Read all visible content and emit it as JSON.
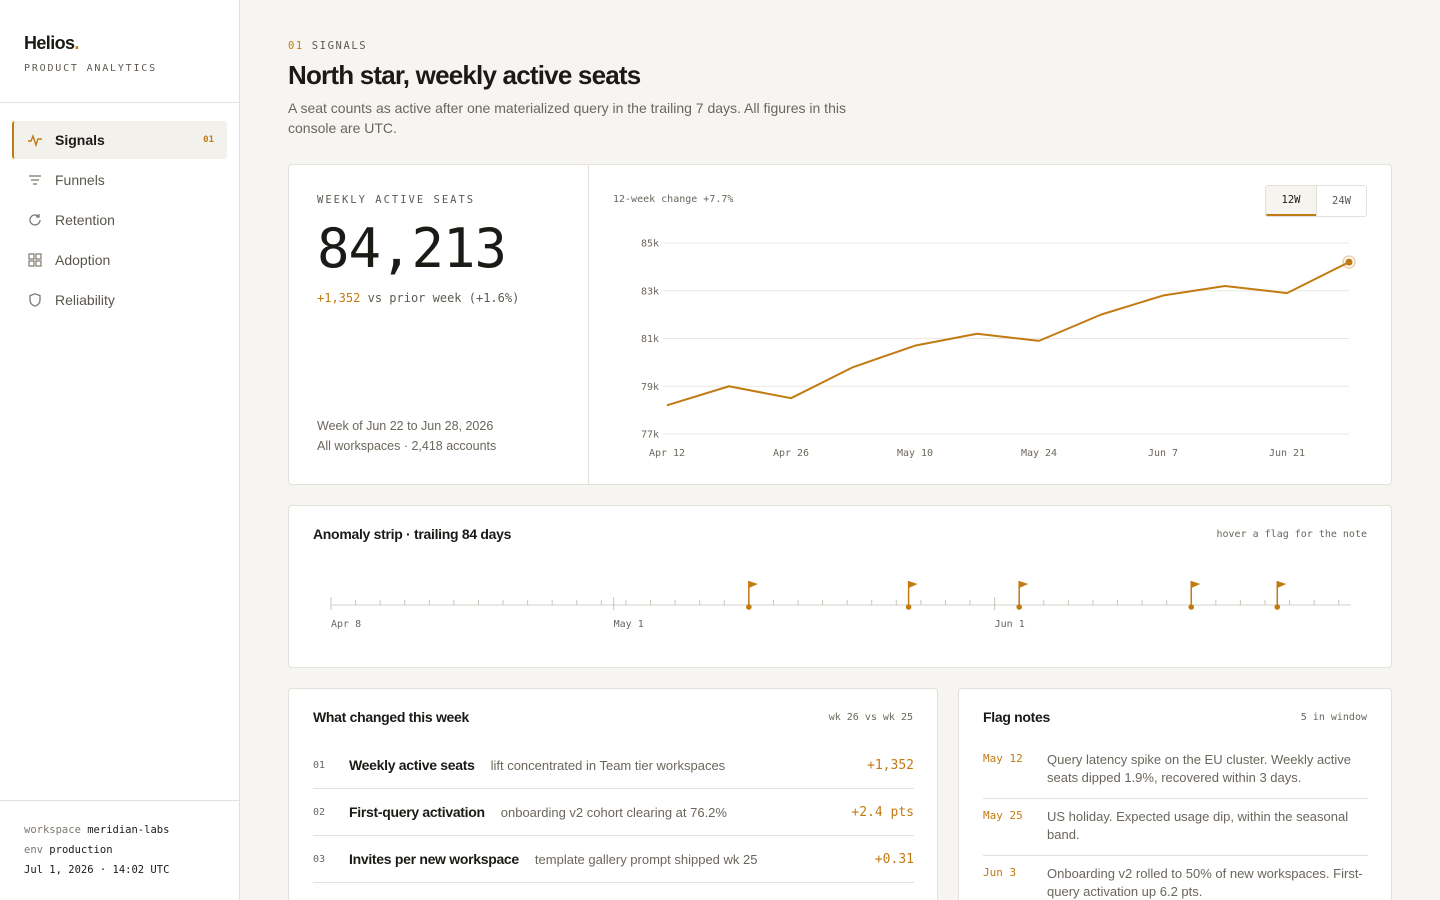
{
  "brand": {
    "name": "Helios",
    "dot": ".",
    "tagline": "PRODUCT ANALYTICS"
  },
  "nav": [
    {
      "label": "Signals",
      "icon": "pulse-icon",
      "count": "01",
      "active": true
    },
    {
      "label": "Funnels",
      "icon": "funnel-icon"
    },
    {
      "label": "Retention",
      "icon": "refresh-icon"
    },
    {
      "label": "Adoption",
      "icon": "grid-icon"
    },
    {
      "label": "Reliability",
      "icon": "shield-icon"
    }
  ],
  "env": {
    "workspace_label": "workspace",
    "workspace": "meridian-labs",
    "env_label": "env",
    "env": "production",
    "timestamp": "Jul 1, 2026 · 14:02 UTC"
  },
  "page": {
    "eyebrow_num": "01",
    "eyebrow": "SIGNALS",
    "title": "North star, weekly active seats",
    "subtitle": "A seat counts as active after one materialized query in the trailing 7 days. All figures in this console are UTC."
  },
  "stat": {
    "label": "WEEKLY ACTIVE SEATS",
    "value": "84,213",
    "delta": "+1,352",
    "delta_rest": "vs prior week (+1.6%)",
    "week": "Week of Jun 22 to Jun 28, 2026",
    "scope": "All workspaces · 2,418 accounts"
  },
  "chart_meta": {
    "change": "12-week change +7.7%",
    "range_options": [
      "12W",
      "24W"
    ],
    "range_selected": "12W",
    "accent": "#c27a12"
  },
  "chart_data": {
    "type": "line",
    "x": [
      "Apr 12",
      "Apr 19",
      "Apr 26",
      "May 3",
      "May 10",
      "May 17",
      "May 24",
      "May 31",
      "Jun 7",
      "Jun 14",
      "Jun 21",
      "Jun 28"
    ],
    "values": [
      78.2,
      79.0,
      78.5,
      79.8,
      80.7,
      81.2,
      80.9,
      82.0,
      82.8,
      83.2,
      82.9,
      84.2
    ],
    "x_tick_labels": [
      "Apr 12",
      "Apr 26",
      "May 10",
      "May 24",
      "Jun 7",
      "Jun 21"
    ],
    "y_tick_labels": [
      "85k",
      "83k",
      "81k",
      "79k",
      "77k"
    ],
    "y_ticks": [
      85,
      83,
      81,
      79,
      77
    ],
    "ylim": [
      77,
      85
    ],
    "grid": true,
    "highlight_last": true
  },
  "strip": {
    "title": "Anomaly strip · trailing 84 days",
    "hint": "hover a flag for the note",
    "day_count": 84,
    "axis_labels": [
      {
        "label": "Apr 8",
        "day": 0
      },
      {
        "label": "May 1",
        "day": 23
      },
      {
        "label": "Jun 1",
        "day": 54
      }
    ],
    "flag_days": [
      34,
      47,
      56,
      70,
      77
    ]
  },
  "changes": {
    "title": "What changed this week",
    "meta": "wk 26 vs wk 25",
    "rows": [
      {
        "idx": "01",
        "name": "Weekly active seats",
        "desc": "lift concentrated in Team tier workspaces",
        "value": "+1,352"
      },
      {
        "idx": "02",
        "name": "First-query activation",
        "desc": "onboarding v2 cohort clearing at 76.2%",
        "value": "+2.4 pts"
      },
      {
        "idx": "03",
        "name": "Invites per new workspace",
        "desc": "template gallery prompt shipped wk 25",
        "value": "+0.31"
      }
    ]
  },
  "notes": {
    "title": "Flag notes",
    "meta": "5 in window",
    "rows": [
      {
        "date": "May 12",
        "text": "Query latency spike on the EU cluster. Weekly active seats dipped 1.9%, recovered within 3 days."
      },
      {
        "date": "May 25",
        "text": "US holiday. Expected usage dip, within the seasonal band."
      },
      {
        "date": "Jun 3",
        "text": "Onboarding v2 rolled to 50% of new workspaces. First-query activation up 6.2 pts."
      }
    ]
  }
}
